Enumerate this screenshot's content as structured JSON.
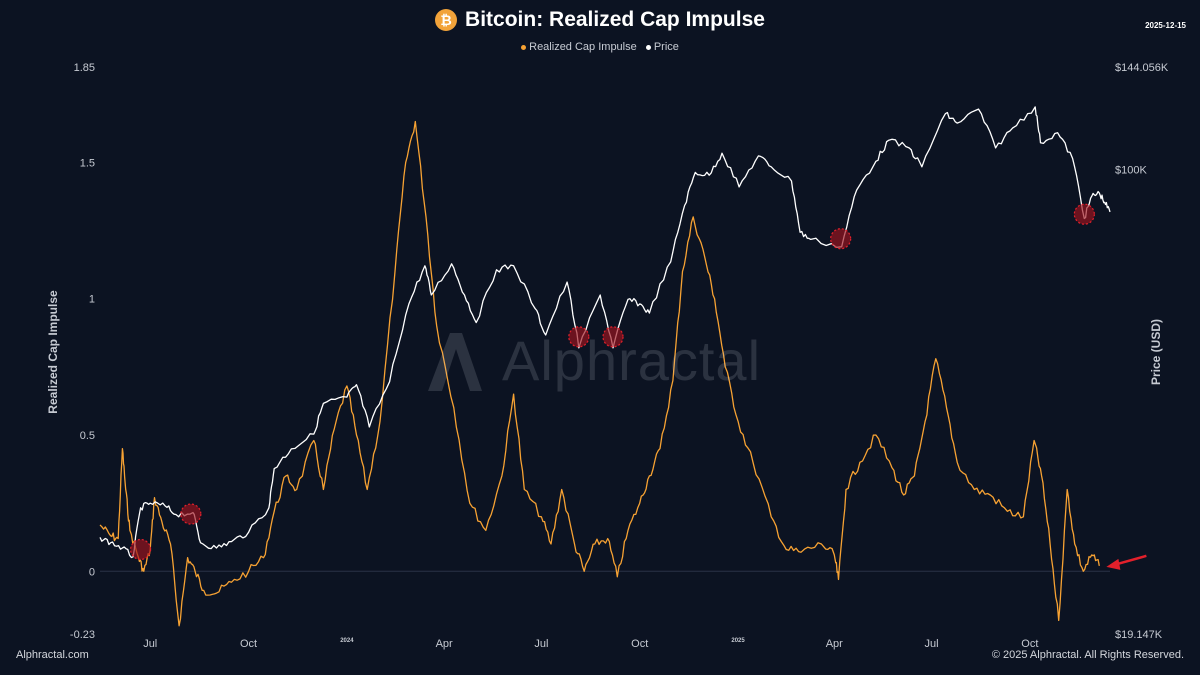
{
  "header": {
    "title": "Bitcoin: Realized Cap Impulse",
    "date": "2025-12-15"
  },
  "legend": [
    {
      "name": "Realized Cap Impulse",
      "color": "#f7a233"
    },
    {
      "name": "Price",
      "color": "#ffffff"
    }
  ],
  "footer": {
    "left": "Alphractal.com",
    "right": "© 2025 Alphractal. All Rights Reserved."
  },
  "watermark": "Alphractal",
  "chart_data": {
    "type": "line",
    "title": "Bitcoin: Realized Cap Impulse",
    "ylabel_left": "Realized Cap Impulse",
    "ylabel_right": "Price (USD)",
    "left_axis": {
      "ticks": [
        {
          "v": 1.85,
          "label": "1.85"
        },
        {
          "v": 1.5,
          "label": "1.5"
        },
        {
          "v": 1.0,
          "label": "1"
        },
        {
          "v": 0.5,
          "label": "0.5"
        },
        {
          "v": 0.0,
          "label": "0"
        },
        {
          "v": -0.23,
          "label": "-0.23"
        }
      ],
      "range": [
        -0.23,
        1.85
      ]
    },
    "right_axis": {
      "scale": "log",
      "ticks": [
        {
          "v": 144056,
          "label": "$144.056K"
        },
        {
          "v": 100000,
          "label": "$100K"
        },
        {
          "v": 19147,
          "label": "$19.147K"
        }
      ],
      "range": [
        19147,
        144056
      ]
    },
    "x_axis": {
      "start": "2023-05-15",
      "end": "2025-12-15",
      "ticks": [
        {
          "date": "2023-07-01",
          "label": "Jul",
          "year": false
        },
        {
          "date": "2023-10-01",
          "label": "Oct",
          "year": false
        },
        {
          "date": "2024-01-01",
          "label": "2024",
          "year": true
        },
        {
          "date": "2024-04-01",
          "label": "Apr",
          "year": false
        },
        {
          "date": "2024-07-01",
          "label": "Jul",
          "year": false
        },
        {
          "date": "2024-10-01",
          "label": "Oct",
          "year": false
        },
        {
          "date": "2025-01-01",
          "label": "2025",
          "year": true
        },
        {
          "date": "2025-04-01",
          "label": "Apr",
          "year": false
        },
        {
          "date": "2025-07-01",
          "label": "Jul",
          "year": false
        },
        {
          "date": "2025-10-01",
          "label": "Oct",
          "year": false
        }
      ]
    },
    "series": [
      {
        "name": "Realized Cap Impulse",
        "color": "#f7a233",
        "axis": "left",
        "points": [
          [
            "2023-05-15",
            0.17
          ],
          [
            "2023-05-25",
            0.13
          ],
          [
            "2023-06-01",
            0.12
          ],
          [
            "2023-06-05",
            0.45
          ],
          [
            "2023-06-08",
            0.3
          ],
          [
            "2023-06-12",
            0.15
          ],
          [
            "2023-06-20",
            0.05
          ],
          [
            "2023-06-25",
            0.0
          ],
          [
            "2023-07-01",
            0.08
          ],
          [
            "2023-07-05",
            0.27
          ],
          [
            "2023-07-12",
            0.18
          ],
          [
            "2023-07-20",
            0.1
          ],
          [
            "2023-07-28",
            -0.2
          ],
          [
            "2023-08-05",
            0.05
          ],
          [
            "2023-08-12",
            0.0
          ],
          [
            "2023-08-20",
            -0.07
          ],
          [
            "2023-09-01",
            -0.08
          ],
          [
            "2023-09-15",
            -0.04
          ],
          [
            "2023-10-01",
            0.0
          ],
          [
            "2023-10-15",
            0.05
          ],
          [
            "2023-10-25",
            0.22
          ],
          [
            "2023-11-05",
            0.35
          ],
          [
            "2023-11-15",
            0.3
          ],
          [
            "2023-12-01",
            0.48
          ],
          [
            "2023-12-10",
            0.3
          ],
          [
            "2023-12-20",
            0.52
          ],
          [
            "2024-01-01",
            0.68
          ],
          [
            "2024-01-10",
            0.5
          ],
          [
            "2024-01-20",
            0.3
          ],
          [
            "2024-02-01",
            0.55
          ],
          [
            "2024-02-15",
            1.1
          ],
          [
            "2024-02-25",
            1.5
          ],
          [
            "2024-03-05",
            1.65
          ],
          [
            "2024-03-15",
            1.3
          ],
          [
            "2024-03-25",
            0.9
          ],
          [
            "2024-04-10",
            0.6
          ],
          [
            "2024-04-25",
            0.25
          ],
          [
            "2024-05-10",
            0.15
          ],
          [
            "2024-05-25",
            0.35
          ],
          [
            "2024-06-05",
            0.65
          ],
          [
            "2024-06-15",
            0.3
          ],
          [
            "2024-07-01",
            0.2
          ],
          [
            "2024-07-10",
            0.1
          ],
          [
            "2024-07-20",
            0.3
          ],
          [
            "2024-08-01",
            0.1
          ],
          [
            "2024-08-10",
            0.0
          ],
          [
            "2024-08-20",
            0.1
          ],
          [
            "2024-09-01",
            0.12
          ],
          [
            "2024-09-10",
            -0.02
          ],
          [
            "2024-09-20",
            0.15
          ],
          [
            "2024-10-01",
            0.25
          ],
          [
            "2024-10-10",
            0.35
          ],
          [
            "2024-10-20",
            0.45
          ],
          [
            "2024-11-01",
            0.7
          ],
          [
            "2024-11-10",
            1.1
          ],
          [
            "2024-11-20",
            1.3
          ],
          [
            "2024-12-01",
            1.15
          ],
          [
            "2024-12-10",
            1.0
          ],
          [
            "2024-12-20",
            0.75
          ],
          [
            "2025-01-01",
            0.55
          ],
          [
            "2025-01-15",
            0.4
          ],
          [
            "2025-02-01",
            0.2
          ],
          [
            "2025-02-15",
            0.08
          ],
          [
            "2025-03-01",
            0.07
          ],
          [
            "2025-03-20",
            0.1
          ],
          [
            "2025-04-01",
            0.06
          ],
          [
            "2025-04-05",
            -0.03
          ],
          [
            "2025-04-12",
            0.3
          ],
          [
            "2025-04-25",
            0.4
          ],
          [
            "2025-05-10",
            0.5
          ],
          [
            "2025-05-25",
            0.38
          ],
          [
            "2025-06-05",
            0.28
          ],
          [
            "2025-06-15",
            0.35
          ],
          [
            "2025-06-25",
            0.55
          ],
          [
            "2025-07-05",
            0.78
          ],
          [
            "2025-07-15",
            0.6
          ],
          [
            "2025-07-25",
            0.4
          ],
          [
            "2025-08-10",
            0.3
          ],
          [
            "2025-08-25",
            0.28
          ],
          [
            "2025-09-10",
            0.22
          ],
          [
            "2025-09-25",
            0.2
          ],
          [
            "2025-10-05",
            0.48
          ],
          [
            "2025-10-12",
            0.35
          ],
          [
            "2025-10-20",
            0.1
          ],
          [
            "2025-10-28",
            -0.18
          ],
          [
            "2025-11-05",
            0.3
          ],
          [
            "2025-11-12",
            0.1
          ],
          [
            "2025-11-20",
            0.0
          ],
          [
            "2025-11-28",
            0.06
          ],
          [
            "2025-12-05",
            0.02
          ]
        ]
      },
      {
        "name": "Price",
        "color": "#ffffff",
        "axis": "right",
        "points": [
          [
            "2023-05-15",
            27000
          ],
          [
            "2023-05-25",
            26500
          ],
          [
            "2023-06-05",
            26000
          ],
          [
            "2023-06-15",
            25200
          ],
          [
            "2023-06-22",
            30000
          ],
          [
            "2023-07-01",
            30500
          ],
          [
            "2023-07-15",
            30200
          ],
          [
            "2023-07-25",
            29300
          ],
          [
            "2023-08-10",
            29500
          ],
          [
            "2023-08-17",
            26500
          ],
          [
            "2023-09-01",
            26000
          ],
          [
            "2023-09-15",
            26600
          ],
          [
            "2023-10-01",
            27500
          ],
          [
            "2023-10-20",
            30000
          ],
          [
            "2023-10-25",
            34500
          ],
          [
            "2023-11-10",
            37000
          ],
          [
            "2023-12-01",
            39000
          ],
          [
            "2023-12-10",
            43500
          ],
          [
            "2024-01-01",
            44500
          ],
          [
            "2024-01-10",
            46500
          ],
          [
            "2024-01-22",
            40000
          ],
          [
            "2024-02-10",
            47000
          ],
          [
            "2024-02-28",
            62000
          ],
          [
            "2024-03-14",
            71000
          ],
          [
            "2024-03-20",
            64000
          ],
          [
            "2024-04-08",
            71500
          ],
          [
            "2024-04-20",
            64000
          ],
          [
            "2024-05-01",
            58000
          ],
          [
            "2024-05-20",
            70000
          ],
          [
            "2024-06-05",
            71000
          ],
          [
            "2024-06-25",
            61000
          ],
          [
            "2024-07-05",
            55500
          ],
          [
            "2024-07-25",
            67000
          ],
          [
            "2024-08-05",
            53000
          ],
          [
            "2024-08-25",
            64000
          ],
          [
            "2024-09-06",
            53000
          ],
          [
            "2024-09-20",
            63000
          ],
          [
            "2024-10-01",
            62000
          ],
          [
            "2024-10-10",
            60000
          ],
          [
            "2024-10-30",
            72000
          ],
          [
            "2024-11-12",
            88000
          ],
          [
            "2024-11-22",
            99000
          ],
          [
            "2024-12-05",
            98000
          ],
          [
            "2024-12-17",
            106000
          ],
          [
            "2025-01-02",
            94000
          ],
          [
            "2025-01-20",
            105000
          ],
          [
            "2025-02-01",
            101000
          ],
          [
            "2025-02-20",
            96000
          ],
          [
            "2025-02-28",
            80000
          ],
          [
            "2025-03-10",
            78000
          ],
          [
            "2025-04-08",
            76000
          ],
          [
            "2025-04-22",
            93000
          ],
          [
            "2025-05-10",
            103000
          ],
          [
            "2025-05-22",
            111000
          ],
          [
            "2025-06-10",
            108000
          ],
          [
            "2025-06-22",
            101000
          ],
          [
            "2025-07-14",
            122000
          ],
          [
            "2025-07-25",
            118000
          ],
          [
            "2025-08-14",
            124000
          ],
          [
            "2025-08-30",
            108000
          ],
          [
            "2025-09-15",
            116000
          ],
          [
            "2025-10-06",
            125000
          ],
          [
            "2025-10-11",
            110000
          ],
          [
            "2025-10-27",
            114000
          ],
          [
            "2025-11-10",
            104000
          ],
          [
            "2025-11-21",
            84000
          ],
          [
            "2025-11-28",
            91000
          ],
          [
            "2025-12-05",
            92000
          ],
          [
            "2025-12-10",
            89000
          ],
          [
            "2025-12-15",
            86000
          ]
        ]
      }
    ],
    "annotations": [
      {
        "type": "circle",
        "date": "2023-06-22",
        "value": 0.08,
        "axis": "left"
      },
      {
        "type": "circle",
        "date": "2023-08-08",
        "value": 0.21,
        "axis": "left"
      },
      {
        "type": "circle",
        "date": "2024-08-05",
        "value": 0.86,
        "axis": "left"
      },
      {
        "type": "circle",
        "date": "2024-09-06",
        "value": 0.86,
        "axis": "left"
      },
      {
        "type": "circle",
        "date": "2025-04-07",
        "value": 1.22,
        "axis": "left"
      },
      {
        "type": "circle",
        "date": "2025-11-21",
        "value": 1.31,
        "axis": "left"
      },
      {
        "type": "arrow",
        "date": "2025-12-06",
        "value": 0.02,
        "axis": "left",
        "color": "#e3202b"
      }
    ]
  }
}
